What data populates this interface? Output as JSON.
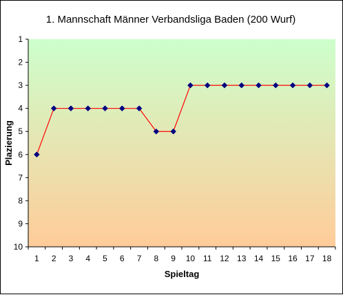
{
  "chart_data": {
    "type": "line",
    "title": "1. Mannschaft Männer  Verbandsliga Baden (200 Wurf)",
    "xlabel": "Spieltag",
    "ylabel": "Plazierung",
    "categories": [
      "1",
      "2",
      "3",
      "4",
      "5",
      "6",
      "7",
      "8",
      "9",
      "10",
      "11",
      "12",
      "13",
      "14",
      "15",
      "16",
      "17",
      "18"
    ],
    "y_ticks": [
      "1",
      "2",
      "3",
      "4",
      "5",
      "6",
      "7",
      "8",
      "9",
      "10"
    ],
    "ylim": [
      1,
      10
    ],
    "y_axis_reversed": true,
    "grid": false,
    "legend": "none",
    "series": [
      {
        "values": [
          6,
          4,
          4,
          4,
          4,
          4,
          4,
          5,
          5,
          3,
          3,
          3,
          3,
          3,
          3,
          3,
          3,
          3
        ]
      }
    ],
    "colors": {
      "line": "#ff0000",
      "marker": "#000080",
      "plot_gradient_top": "#ccffcc",
      "plot_gradient_bottom": "#ffcc99"
    }
  }
}
